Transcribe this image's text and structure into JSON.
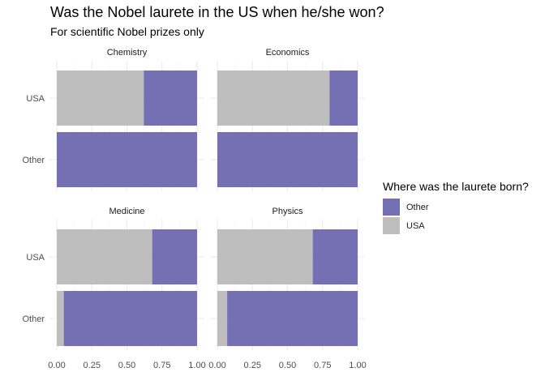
{
  "title": "Was the Nobel laurete in the US when he/she won?",
  "subtitle": "For scientific Nobel prizes only",
  "colors": {
    "Other": "#7570B3",
    "USA": "#BEBEBE",
    "panel_bg": "#FFFFFF",
    "grid_major": "#EBEBEB",
    "grid_minor": "#F4F4F4"
  },
  "legend": {
    "title": "Where was the laurete born?",
    "position": "right",
    "items": [
      {
        "label": "Other",
        "color": "#7570B3"
      },
      {
        "label": "USA",
        "color": "#BEBEBE"
      }
    ]
  },
  "chart_data": {
    "type": "bar",
    "orientation": "horizontal",
    "stacked": "fill",
    "facet_titles": [
      "Chemistry",
      "Economics",
      "Medicine",
      "Physics"
    ],
    "categories": [
      "USA",
      "Other"
    ],
    "x_ticks": [
      "0.00",
      "0.25",
      "0.50",
      "0.75",
      "1.00"
    ],
    "xlim": [
      0,
      1
    ],
    "grid": true,
    "facets": [
      {
        "name": "Chemistry",
        "bars": [
          {
            "category": "USA",
            "USA": 0.62,
            "Other": 0.38
          },
          {
            "category": "Other",
            "USA": 0.0,
            "Other": 1.0
          }
        ]
      },
      {
        "name": "Economics",
        "bars": [
          {
            "category": "USA",
            "USA": 0.8,
            "Other": 0.2
          },
          {
            "category": "Other",
            "USA": 0.0,
            "Other": 1.0
          }
        ]
      },
      {
        "name": "Medicine",
        "bars": [
          {
            "category": "USA",
            "USA": 0.68,
            "Other": 0.32
          },
          {
            "category": "Other",
            "USA": 0.05,
            "Other": 0.95
          }
        ]
      },
      {
        "name": "Physics",
        "bars": [
          {
            "category": "USA",
            "USA": 0.68,
            "Other": 0.32
          },
          {
            "category": "Other",
            "USA": 0.07,
            "Other": 0.93
          }
        ]
      }
    ]
  }
}
